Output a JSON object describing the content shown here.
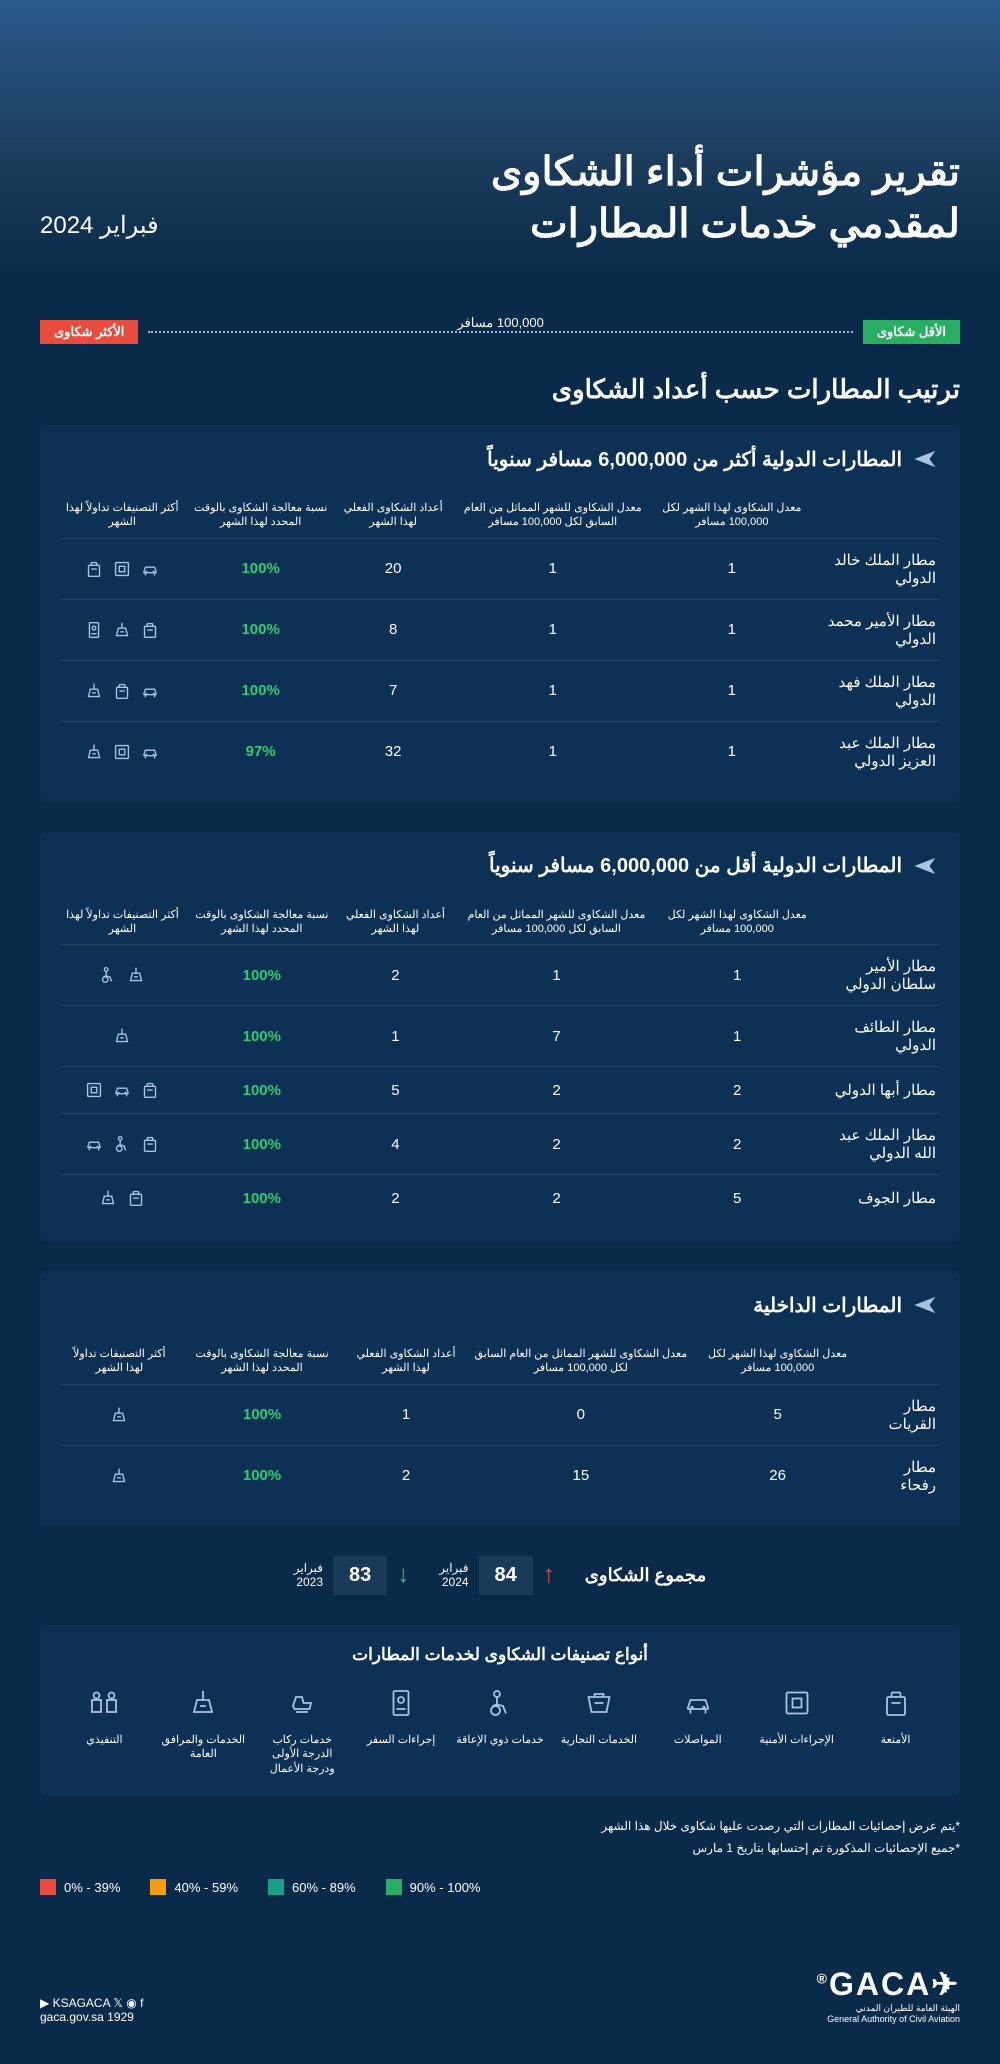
{
  "hero": {
    "title_line1": "تقرير مؤشرات أداء الشكاوى",
    "title_line2": "لمقدمي خدمات المطارات",
    "date": "فبراير 2024"
  },
  "legend": {
    "least": "الأقل شكاوى",
    "most": "الأكثر شكاوى",
    "middle": "100,000 مسافر",
    "least_color": "#27ae60",
    "most_color": "#e74c3c"
  },
  "section_title": "ترتيب المطارات حسب أعداد الشكاوى",
  "columns": {
    "airport": "",
    "rate_current": "معدل الشكاوى لهذا الشهر لكل 100,000 مسافر",
    "rate_prev": "معدل الشكاوى للشهر المماثل من العام السابق لكل 100,000 مسافر",
    "count": "أعداد الشكاوى الفعلي لهذا الشهر",
    "pct": "نسبة معالجة الشكاوى بالوقت المحدد لهذا الشهر",
    "cats": "أكثر التصنيفات تداولاً لهذا الشهر"
  },
  "tables": [
    {
      "title_prefix": "المطارات الدولية ",
      "title_bold": "أكثر",
      "title_suffix": " من 6,000,000 مسافر سنوياً",
      "rows": [
        {
          "name": "مطار الملك خالد الدولي",
          "rate_cur": "1",
          "rate_prev": "1",
          "count": "20",
          "pct": "100%",
          "pct_color": "green",
          "icons": [
            "transport",
            "security",
            "luggage"
          ]
        },
        {
          "name": "مطار الأمير محمد الدولي",
          "rate_cur": "1",
          "rate_prev": "1",
          "count": "8",
          "pct": "100%",
          "pct_color": "green",
          "icons": [
            "luggage",
            "facilities",
            "passport"
          ]
        },
        {
          "name": "مطار الملك فهد الدولي",
          "rate_cur": "1",
          "rate_prev": "1",
          "count": "7",
          "pct": "100%",
          "pct_color": "green",
          "icons": [
            "transport",
            "luggage",
            "facilities"
          ]
        },
        {
          "name": "مطار الملك عبد العزيز الدولي",
          "rate_cur": "1",
          "rate_prev": "1",
          "count": "32",
          "pct": "97%",
          "pct_color": "green",
          "icons": [
            "transport",
            "security",
            "facilities"
          ]
        }
      ]
    },
    {
      "title_prefix": "المطارات الدولية ",
      "title_bold": "أقل",
      "title_suffix": " من 6,000,000 مسافر سنوياً",
      "rows": [
        {
          "name": "مطار الأمير سلطان الدولي",
          "rate_cur": "1",
          "rate_prev": "1",
          "count": "2",
          "pct": "100%",
          "pct_color": "green",
          "icons": [
            "facilities",
            "disability"
          ]
        },
        {
          "name": "مطار الطائف الدولي",
          "rate_cur": "1",
          "rate_prev": "7",
          "count": "1",
          "pct": "100%",
          "pct_color": "green",
          "icons": [
            "facilities"
          ]
        },
        {
          "name": "مطار أبها الدولي",
          "rate_cur": "2",
          "rate_prev": "2",
          "count": "5",
          "pct": "100%",
          "pct_color": "green",
          "icons": [
            "luggage",
            "transport",
            "security"
          ]
        },
        {
          "name": "مطار الملك عبد الله الدولي",
          "rate_cur": "2",
          "rate_prev": "2",
          "count": "4",
          "pct": "100%",
          "pct_color": "green",
          "icons": [
            "luggage",
            "disability",
            "transport"
          ]
        },
        {
          "name": "مطار الجوف",
          "rate_cur": "5",
          "rate_prev": "2",
          "count": "2",
          "pct": "100%",
          "pct_color": "green",
          "icons": [
            "luggage",
            "facilities"
          ]
        }
      ]
    },
    {
      "title_prefix": "المطارات الداخلية",
      "title_bold": "",
      "title_suffix": "",
      "rows": [
        {
          "name": "مطار القريات",
          "rate_cur": "5",
          "rate_prev": "0",
          "count": "1",
          "pct": "100%",
          "pct_color": "green",
          "icons": [
            "facilities"
          ]
        },
        {
          "name": "مطار رفحاء",
          "rate_cur": "26",
          "rate_prev": "15",
          "count": "2",
          "pct": "100%",
          "pct_color": "green",
          "icons": [
            "facilities"
          ]
        }
      ]
    }
  ],
  "totals": {
    "label": "مجموع الشكاوى",
    "current": {
      "value": "84",
      "year_label": "فبراير\n2024",
      "arrow": "up"
    },
    "prev": {
      "value": "83",
      "year_label": "فبراير\n2023",
      "arrow": "down"
    }
  },
  "categories": {
    "title": "أنواع تصنيفات الشكاوى لخدمات المطارات",
    "items": [
      {
        "label": "الأمتعة",
        "icon": "luggage"
      },
      {
        "label": "الإجراءات الأمنية",
        "icon": "security"
      },
      {
        "label": "المواصلات",
        "icon": "transport"
      },
      {
        "label": "الخدمات التجارية",
        "icon": "commercial"
      },
      {
        "label": "خدمات ذوي الإعاقة",
        "icon": "disability"
      },
      {
        "label": "إجراءات السفر",
        "icon": "passport"
      },
      {
        "label": "خدمات ركاب الدرجة الأولى ودرجة الأعمال",
        "icon": "firstclass"
      },
      {
        "label": "الخدمات والمرافق العامة",
        "icon": "facilities"
      },
      {
        "label": "التنفيذي",
        "icon": "executive"
      }
    ]
  },
  "notes": {
    "note1": "*يتم عرض إحصائيات المطارات  التي رصدت عليها شكاوى خلال هذا الشهر",
    "note2": "*جميع الإحصائيات المذكورة تم إحتسابها بتاريخ 1 مارس"
  },
  "color_legend": [
    {
      "label": "100% - 90%",
      "color": "#27ae60"
    },
    {
      "label": "89% - 60%",
      "color": "#16a085"
    },
    {
      "label": "59% - 40%",
      "color": "#f39c12"
    },
    {
      "label": "39% - 0%",
      "color": "#e74c3c"
    }
  ],
  "footer": {
    "logo": "GACA",
    "logo_sub_ar": "الهيئة العامة للطيران المدني",
    "logo_sub_en": "General Authority of Civil Aviation",
    "social_handle": "KSAGACA",
    "website": "gaca.gov.sa 1929"
  },
  "colors": {
    "bg": "#0a2a4a",
    "card_bg": "#0d3055",
    "green": "#2ecc71",
    "red": "#e74c3c"
  }
}
